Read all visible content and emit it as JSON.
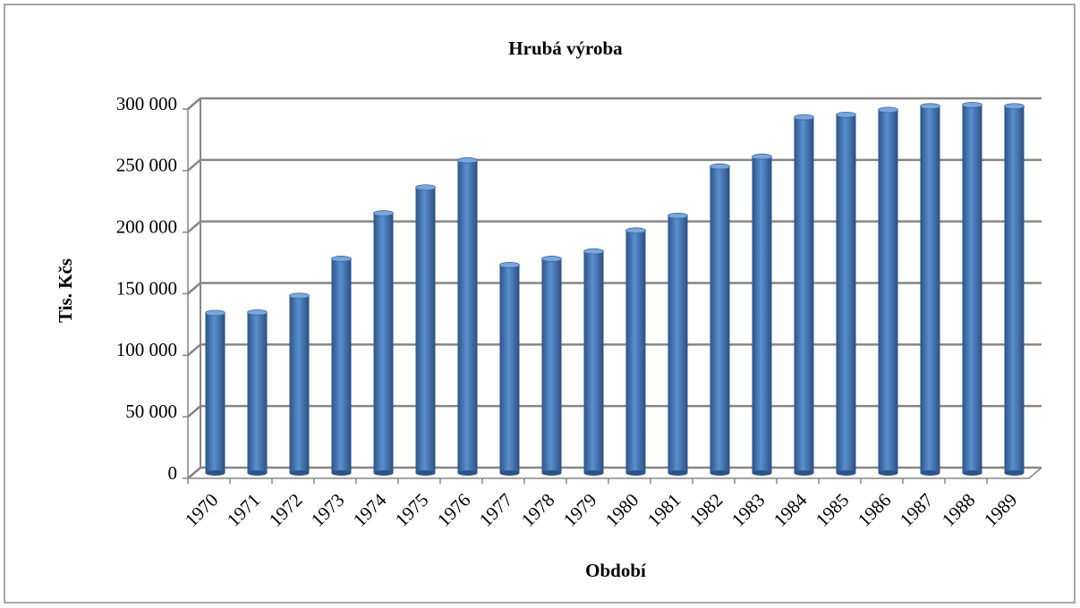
{
  "chart_data": {
    "type": "bar",
    "title": "Hrubá výroba",
    "xlabel": "Období",
    "ylabel": "Tis. Kčs",
    "categories": [
      "1970",
      "1971",
      "1972",
      "1973",
      "1974",
      "1975",
      "1976",
      "1977",
      "1978",
      "1979",
      "1980",
      "1981",
      "1982",
      "1983",
      "1984",
      "1985",
      "1986",
      "1987",
      "1988",
      "1989"
    ],
    "values": [
      130000,
      130500,
      144000,
      174000,
      211000,
      232000,
      254000,
      169000,
      174000,
      180000,
      197000,
      209000,
      249000,
      257000,
      289000,
      291000,
      295000,
      298000,
      299000,
      298000
    ],
    "color": "#4f81bd",
    "ylim": [
      0,
      300000
    ],
    "yticks": [
      0,
      {
        "value": 50000,
        "label": "50 000"
      },
      {
        "value": 100000,
        "label": "100 000"
      },
      {
        "value": 150000,
        "label": "150 000"
      },
      {
        "value": 200000,
        "label": "200 000"
      },
      {
        "value": 250000,
        "label": "250 000"
      },
      {
        "value": 300000,
        "label": "300 000"
      }
    ],
    "grid": true
  }
}
